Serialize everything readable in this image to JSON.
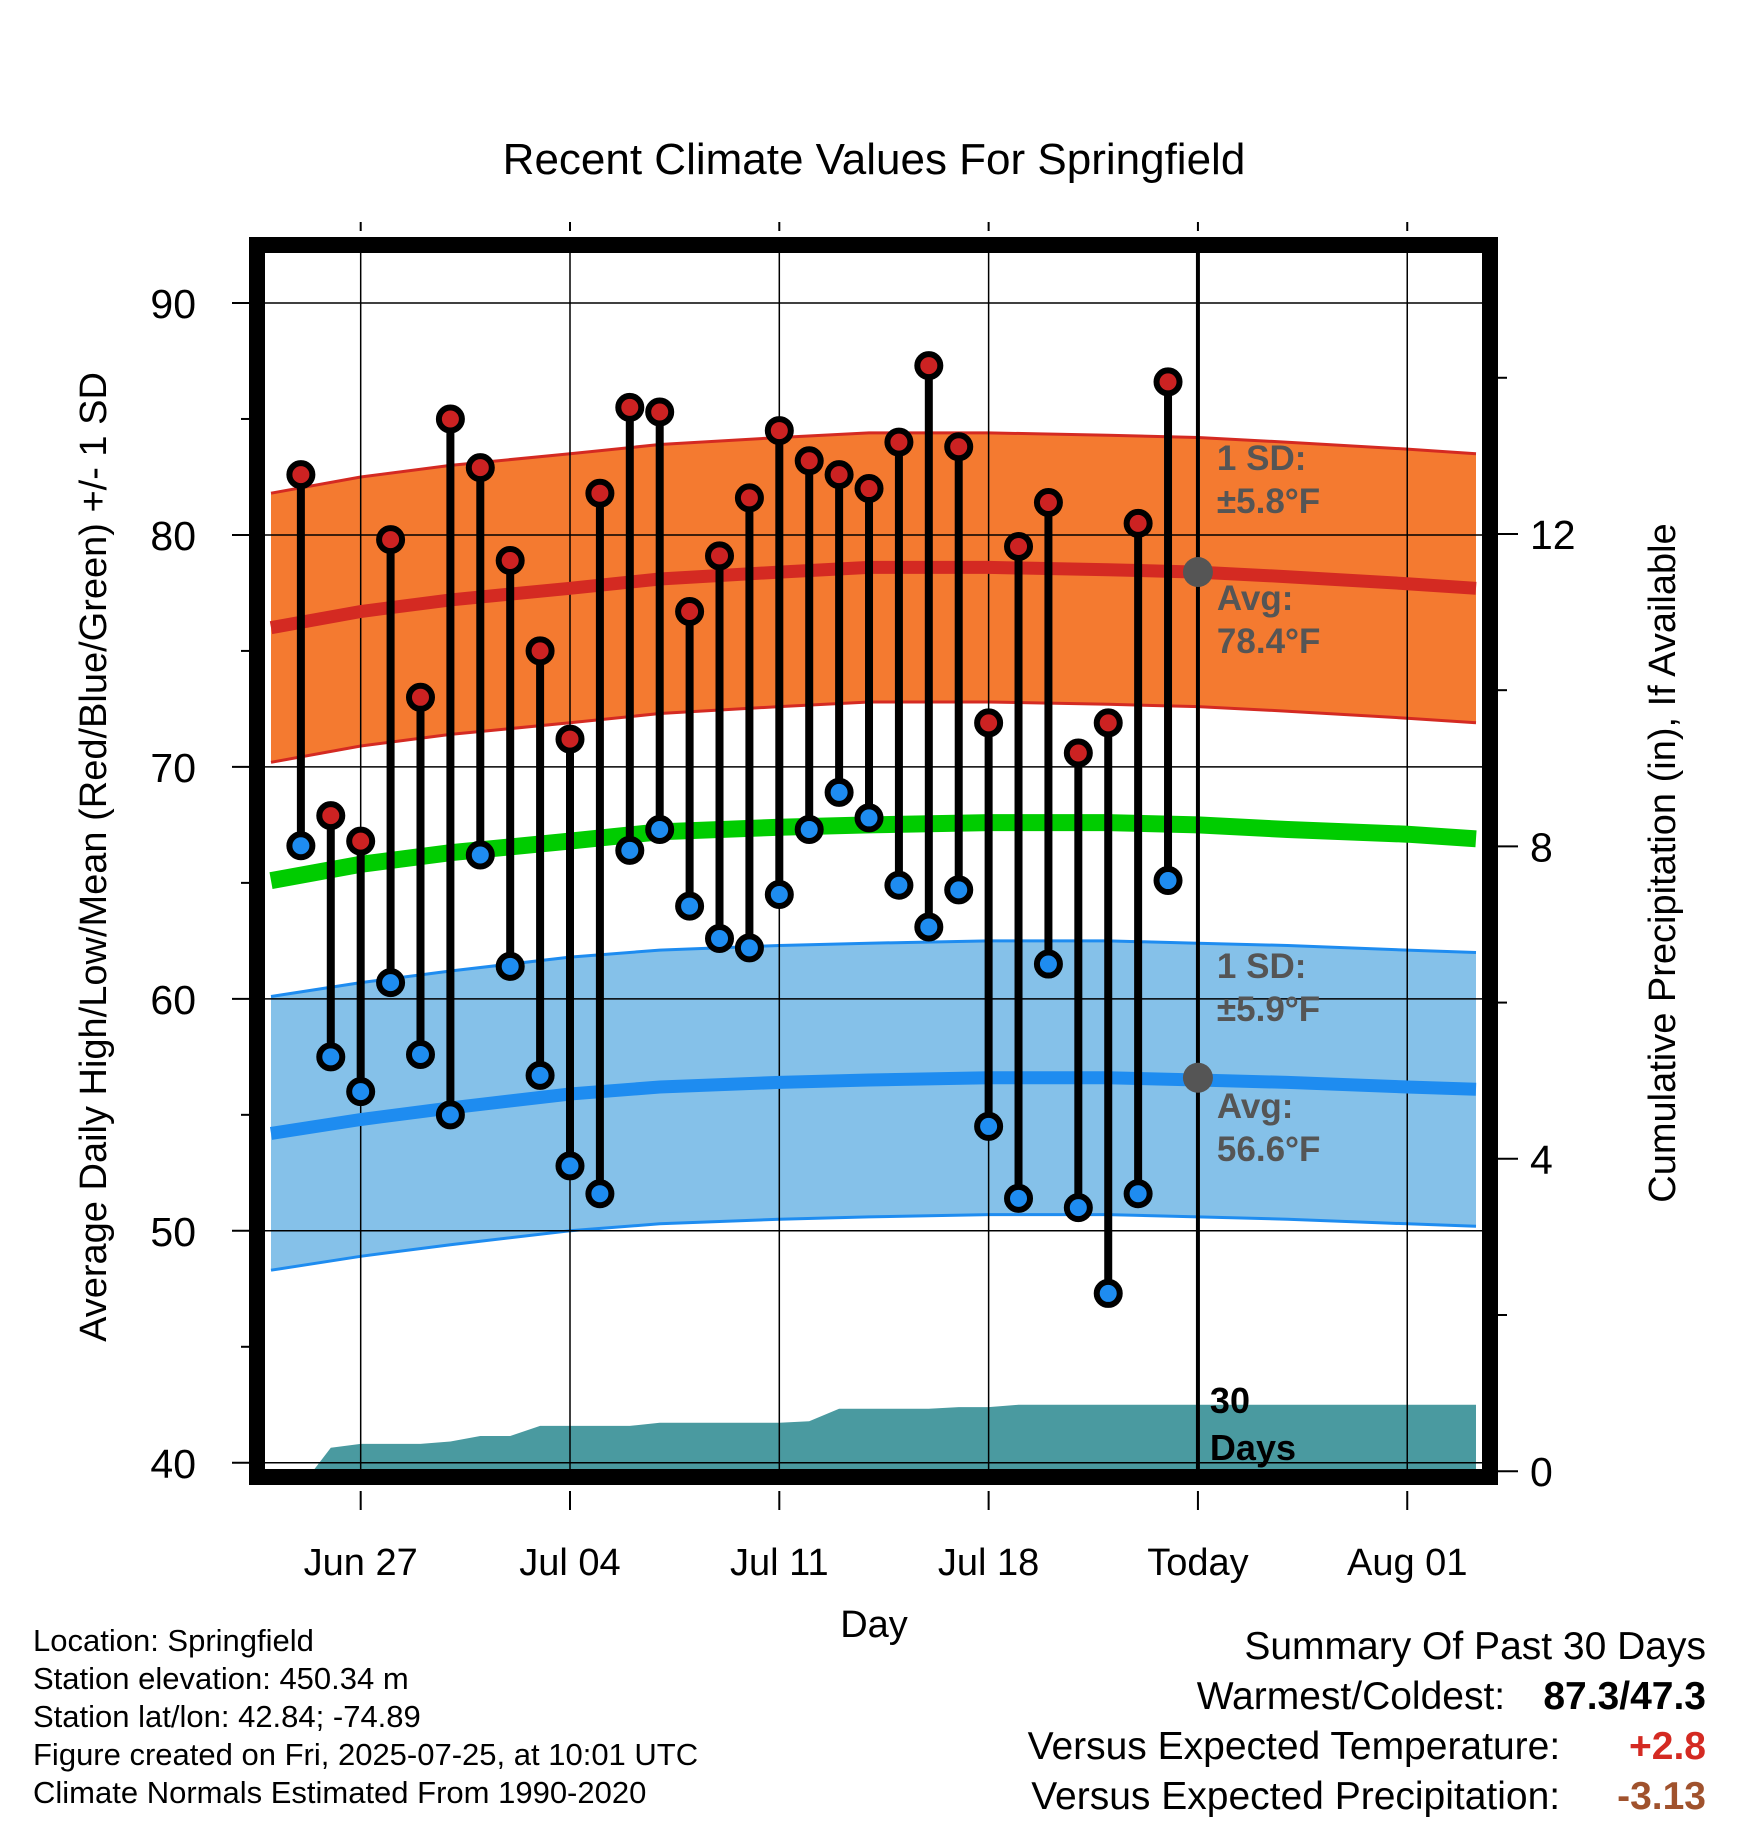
{
  "title": "Recent Climate Values For Springfield",
  "xlabel": "Day",
  "ylabel_left": "Average Daily High/Low/Mean (Red/Blue/Green) +/- 1 SD",
  "ylabel_right": "Cumulative Precipitation (in), If Available",
  "annotations": {
    "high_sd_label": "1 SD:",
    "high_sd_value": "±5.8°F",
    "high_avg_label": "Avg:",
    "high_avg_value": "78.4°F",
    "low_sd_label": "1 SD:",
    "low_sd_value": "±5.9°F",
    "low_avg_label": "Avg:",
    "low_avg_value": "56.6°F",
    "window_line1": "30",
    "window_line2": "Days"
  },
  "footer_left": {
    "location": "Location: Springfield",
    "elevation": "Station elevation: 450.34 m",
    "latlon": "Station lat/lon: 42.84; -74.89",
    "created": "Figure created on Fri, 2025-07-25, at 10:01 UTC",
    "normals": "Climate Normals Estimated From 1990-2020"
  },
  "footer_right": {
    "heading": "Summary Of Past 30 Days",
    "warm_cold_label": "Warmest/Coldest:",
    "warm_cold_value": "87.3/47.3",
    "temp_label": "Versus Expected Temperature:",
    "temp_value": "+2.8",
    "precip_label": "Versus Expected Precipitation:",
    "precip_value": "-3.13"
  },
  "colors": {
    "high_band": "#f47a30",
    "high_line": "#d42a22",
    "low_band": "#85c1e9",
    "low_line": "#1e8cf0",
    "mean_line": "#00cc00",
    "precip": "#4a9aa0",
    "high_dot": "#cc2222",
    "low_dot": "#1e8cf0",
    "marker": "#555555",
    "temp_delta": "#d42a22",
    "precip_delta": "#a0522d"
  },
  "chart_data": {
    "type": "line",
    "x_axis": {
      "ticks": [
        "Jun 27",
        "Jul 04",
        "Jul 11",
        "Jul 18",
        "Today",
        "Aug 01"
      ],
      "tick_day_index": [
        0,
        7,
        14,
        21,
        28,
        35
      ],
      "range_day_index": [
        -3.2,
        37.5
      ],
      "start_date": "Jun 27",
      "end_date": "Aug 01"
    },
    "y_left": {
      "ticks": [
        40,
        50,
        60,
        70,
        80,
        90
      ],
      "range": [
        39.3,
        92.5
      ]
    },
    "y_right": {
      "ticks": [
        0,
        4,
        8,
        12
      ],
      "range": [
        -0.1,
        15.7
      ]
    },
    "normals": {
      "day_index": [
        -3,
        0,
        3,
        7,
        10,
        14,
        17,
        21,
        25,
        28,
        31,
        35,
        37.3
      ],
      "high_avg": [
        76.0,
        76.7,
        77.2,
        77.7,
        78.1,
        78.4,
        78.6,
        78.6,
        78.5,
        78.4,
        78.2,
        77.9,
        77.7
      ],
      "low_avg": [
        54.2,
        54.8,
        55.3,
        55.9,
        56.2,
        56.4,
        56.5,
        56.6,
        56.6,
        56.5,
        56.4,
        56.2,
        56.1
      ],
      "mean_avg": [
        65.1,
        65.8,
        66.3,
        66.8,
        67.2,
        67.4,
        67.5,
        67.6,
        67.6,
        67.5,
        67.3,
        67.1,
        66.9
      ],
      "high_sd": 5.8,
      "low_sd": 5.9
    },
    "daily": {
      "day_index": [
        -2,
        -1,
        0,
        1,
        2,
        3,
        4,
        5,
        6,
        7,
        8,
        9,
        10,
        11,
        12,
        13,
        14,
        15,
        16,
        17,
        18,
        19,
        20,
        21,
        22,
        23,
        24,
        25,
        26,
        27
      ],
      "high": [
        82.6,
        67.9,
        66.8,
        79.8,
        73.0,
        85.0,
        82.9,
        78.9,
        75.0,
        71.2,
        81.8,
        85.5,
        85.3,
        76.7,
        79.1,
        81.6,
        84.5,
        83.2,
        82.6,
        82.0,
        84.0,
        87.3,
        83.8,
        71.9,
        79.5,
        81.4,
        70.6,
        71.9,
        80.5,
        86.6
      ],
      "low": [
        66.6,
        57.5,
        56.0,
        60.7,
        57.6,
        55.0,
        66.2,
        61.4,
        56.7,
        52.8,
        51.6,
        66.4,
        67.3,
        64.0,
        62.6,
        62.2,
        64.5,
        67.3,
        68.9,
        67.8,
        64.9,
        63.1,
        64.7,
        54.5,
        51.4,
        61.5,
        51.0,
        47.3,
        51.6,
        65.1
      ]
    },
    "precip_cumulative": {
      "day_index": [
        -3.2,
        -1.6,
        -1,
        0,
        1,
        2,
        3,
        4,
        5,
        6,
        7,
        8,
        9,
        10,
        11,
        12,
        13,
        14,
        15,
        16,
        17,
        18,
        19,
        20,
        21,
        22,
        23,
        24,
        25,
        26,
        27,
        28,
        37.3
      ],
      "values": [
        0,
        0,
        0.3,
        0.35,
        0.35,
        0.35,
        0.38,
        0.45,
        0.45,
        0.58,
        0.58,
        0.58,
        0.58,
        0.62,
        0.62,
        0.62,
        0.62,
        0.62,
        0.64,
        0.8,
        0.8,
        0.8,
        0.8,
        0.82,
        0.82,
        0.85,
        0.85,
        0.85,
        0.85,
        0.85,
        0.85,
        0.85,
        0.85
      ]
    },
    "today_markers": {
      "high_avg": 78.4,
      "low_avg": 56.6
    },
    "grid": true
  }
}
